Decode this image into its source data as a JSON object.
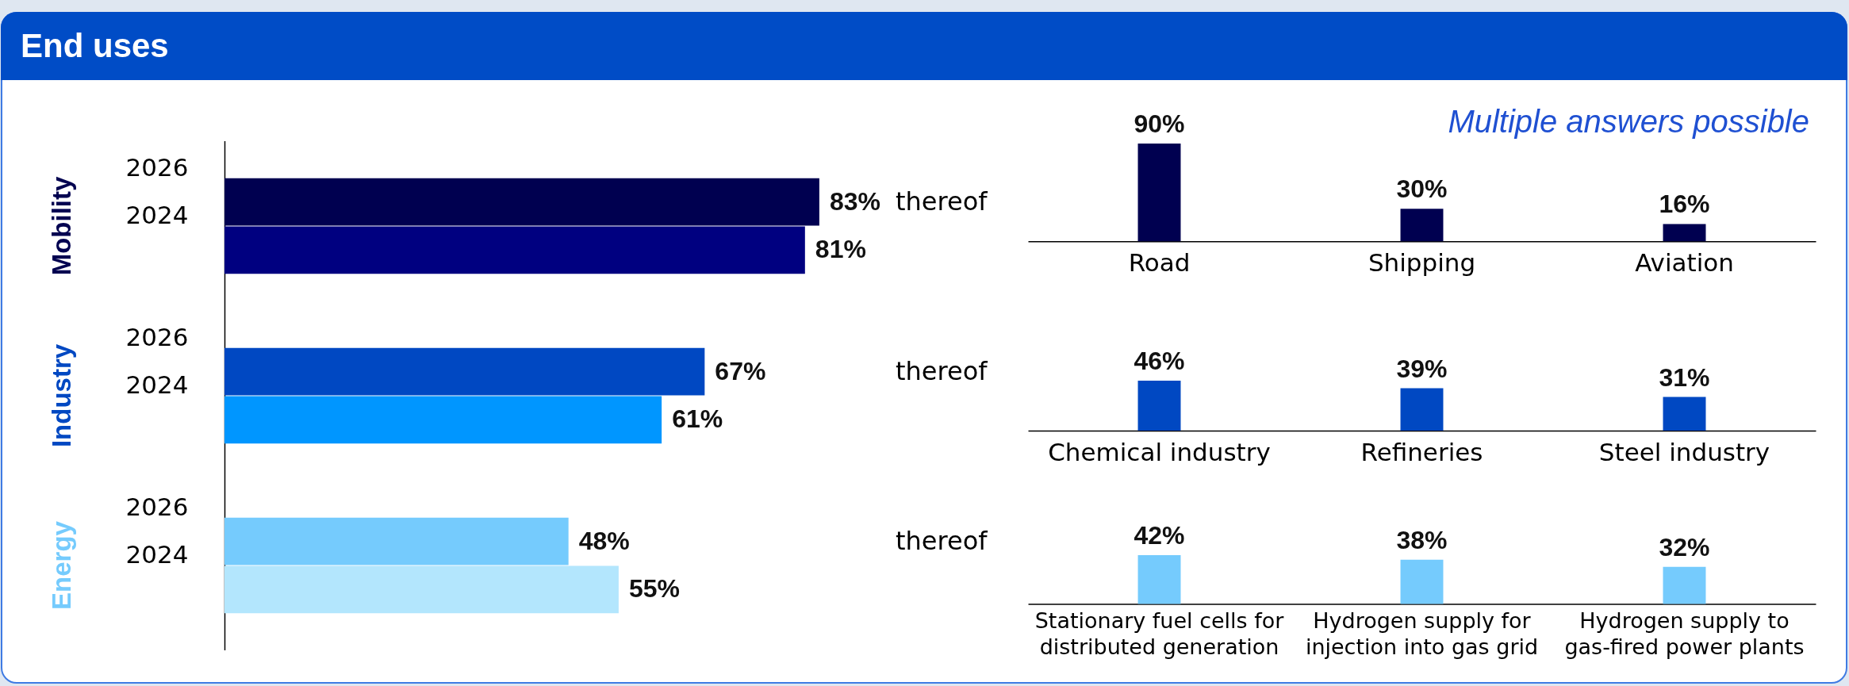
{
  "chart_data": [
    {
      "type": "other",
      "title": "End uses"
    },
    {
      "type": "bar",
      "orientation": "horizontal",
      "title": "Mobility",
      "categories": [
        "2026",
        "2024"
      ],
      "values": [
        83,
        81
      ],
      "colors": [
        "#000050",
        "#000080"
      ],
      "value_labels": [
        "83%",
        "81%"
      ],
      "annotations": [
        "thereof"
      ]
    },
    {
      "type": "bar",
      "categories": [
        "Road",
        "Shipping",
        "Aviation"
      ],
      "values": [
        90,
        30,
        16
      ],
      "color": "#000050",
      "value_labels": [
        "90%",
        "30%",
        "16%"
      ],
      "annotations": [
        "Multiple answers possible"
      ]
    },
    {
      "type": "bar",
      "orientation": "horizontal",
      "title": "Industry",
      "categories": [
        "2026",
        "2024"
      ],
      "values": [
        67,
        61
      ],
      "colors": [
        "#0048c2",
        "#0096ff"
      ],
      "value_labels": [
        "67%",
        "61%"
      ],
      "annotations": [
        "thereof"
      ]
    },
    {
      "type": "bar",
      "categories": [
        "Chemical industry",
        "Refineries",
        "Steel industry"
      ],
      "values": [
        46,
        39,
        31
      ],
      "color": "#0048c2",
      "value_labels": [
        "46%",
        "39%",
        "31%"
      ]
    },
    {
      "type": "bar",
      "orientation": "horizontal",
      "title": "Energy",
      "categories": [
        "2026",
        "2024"
      ],
      "values": [
        48,
        55
      ],
      "colors": [
        "#75cbfd",
        "#b3e6fd"
      ],
      "value_labels": [
        "48%",
        "55%"
      ],
      "annotations": [
        "thereof"
      ]
    },
    {
      "type": "bar",
      "categories": [
        "Stationary fuel cells for distributed generation",
        "Hydrogen supply for injection into gas grid",
        "Hydrogen supply to gas-fired power plants"
      ],
      "values": [
        42,
        38,
        32
      ],
      "color": "#75cbfd",
      "value_labels": [
        "42%",
        "38%",
        "32%"
      ]
    }
  ]
}
